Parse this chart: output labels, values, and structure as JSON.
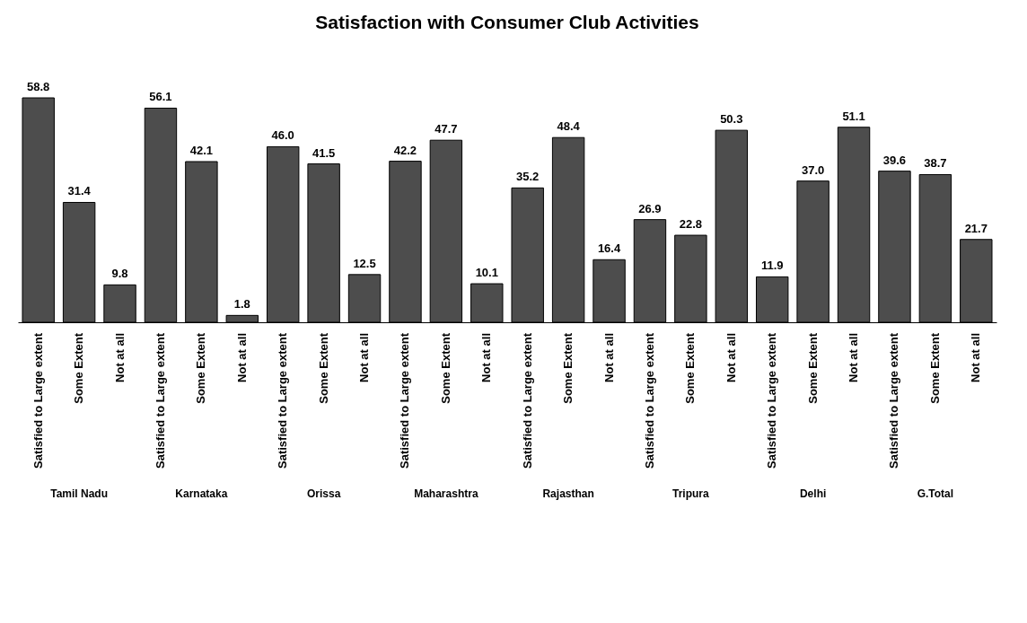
{
  "chart_data": {
    "type": "bar",
    "title": "Satisfaction with Consumer Club Activities",
    "categories": [
      "Tamil Nadu",
      "Karnataka",
      "Orissa",
      "Maharashtra",
      "Rajasthan",
      "Tripura",
      "Delhi",
      "G.Total"
    ],
    "series": [
      {
        "name": "Satisfied to Large extent",
        "color": "#4d4d4d",
        "values": [
          58.8,
          56.1,
          46.0,
          42.2,
          35.2,
          26.9,
          11.9,
          39.6
        ],
        "value_labels": [
          "58.8",
          "56.1",
          "46.0",
          "42.2",
          "35.2",
          "26.9",
          "11.9",
          "39.6"
        ]
      },
      {
        "name": "Some Extent",
        "color": "#4d4d4d",
        "values": [
          31.4,
          42.1,
          41.5,
          47.7,
          48.4,
          22.8,
          37.0,
          38.7
        ],
        "value_labels": [
          "31.4",
          "42.1",
          "41.5",
          "47.7",
          "48.4",
          "22.8",
          "37.0",
          "38.7"
        ]
      },
      {
        "name": "Not at all",
        "color": "#4d4d4d",
        "values": [
          9.8,
          1.8,
          12.5,
          10.1,
          16.4,
          50.3,
          51.1,
          21.7
        ],
        "value_labels": [
          "9.8",
          "1.8",
          "12.5",
          "10.1",
          "16.4",
          "50.3",
          "51.1",
          "21.7"
        ]
      }
    ]
  }
}
